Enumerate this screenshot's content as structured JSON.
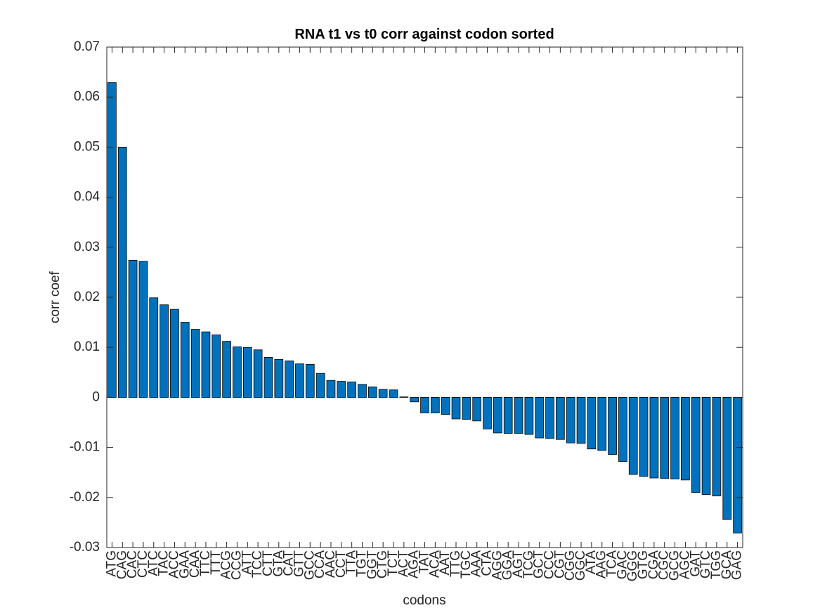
{
  "chart_data": {
    "type": "bar",
    "title": "RNA t1 vs t0 corr against codon sorted",
    "x_label": "codons",
    "y_label": "corr coef",
    "color": "#0072bd",
    "categories": [
      "ATG",
      "CAG",
      "CAC",
      "CTC",
      "ATC",
      "TAC",
      "ACC",
      "GAA",
      "CAA",
      "TTC",
      "TTT",
      "ACG",
      "CCG",
      "ATT",
      "TCC",
      "CTT",
      "GTA",
      "CAT",
      "GTT",
      "GCC",
      "CCA",
      "AAC",
      "CCT",
      "TTA",
      "TGT",
      "GGT",
      "CTG",
      "TCT",
      "ACT",
      "AGA",
      "TAT",
      "ACA",
      "AAT",
      "TTG",
      "TGC",
      "AAA",
      "CTA",
      "AGG",
      "GGA",
      "AGT",
      "TCG",
      "GCT",
      "CCC",
      "CGT",
      "CGG",
      "GGC",
      "ATA",
      "AAG",
      "TCA",
      "GAC",
      "GGG",
      "GTG",
      "CGA",
      "CGC",
      "GCG",
      "AGC",
      "GAT",
      "GTC",
      "TGG",
      "GCA",
      "GAG"
    ],
    "values": [
      0.0629,
      0.05,
      0.0274,
      0.0272,
      0.0199,
      0.0185,
      0.0176,
      0.015,
      0.0136,
      0.0131,
      0.0125,
      0.0112,
      0.0101,
      0.01,
      0.0095,
      0.008,
      0.0076,
      0.0073,
      0.0067,
      0.0066,
      0.0048,
      0.0034,
      0.0032,
      0.0031,
      0.0026,
      0.0021,
      0.0016,
      0.0015,
      0.0001,
      -0.0009,
      -0.0031,
      -0.0031,
      -0.0034,
      -0.0043,
      -0.0044,
      -0.0047,
      -0.0063,
      -0.0071,
      -0.0072,
      -0.0072,
      -0.0074,
      -0.0081,
      -0.0082,
      -0.0084,
      -0.0091,
      -0.0092,
      -0.0103,
      -0.0106,
      -0.0114,
      -0.0128,
      -0.0154,
      -0.0158,
      -0.0161,
      -0.0162,
      -0.0163,
      -0.0165,
      -0.019,
      -0.0194,
      -0.0197,
      -0.0244,
      -0.0271
    ],
    "ylim": [
      -0.03,
      0.07
    ],
    "yticks": [
      -0.03,
      -0.02,
      -0.01,
      0,
      0.01,
      0.02,
      0.03,
      0.04,
      0.05,
      0.06,
      0.07
    ]
  }
}
